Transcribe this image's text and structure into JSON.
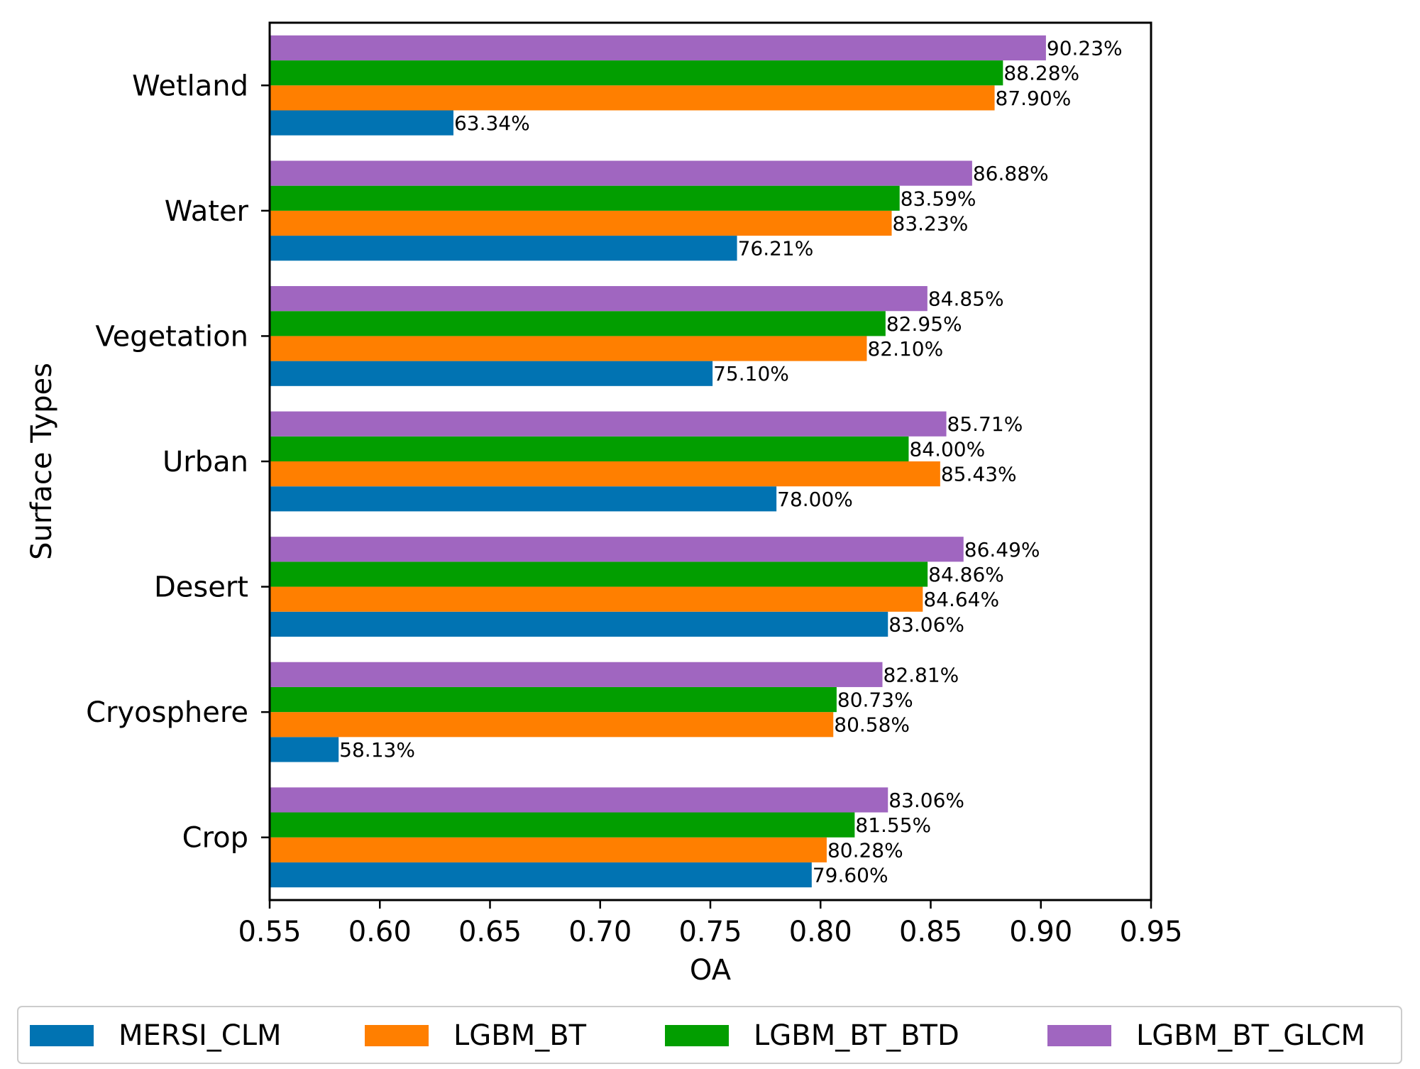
{
  "chart_data": {
    "type": "bar",
    "orientation": "horizontal",
    "title": "",
    "xlabel": "OA",
    "ylabel": "Surface Types",
    "xlim": [
      0.55,
      0.95
    ],
    "xticks": [
      "0.55",
      "0.60",
      "0.65",
      "0.70",
      "0.75",
      "0.80",
      "0.85",
      "0.90",
      "0.95"
    ],
    "categories": [
      "Crop",
      "Cryosphere",
      "Desert",
      "Urban",
      "Vegetation",
      "Water",
      "Wetland"
    ],
    "series": [
      {
        "name": "MERSI_CLM",
        "color": "#0173b2",
        "values": [
          0.796,
          0.5813,
          0.8306,
          0.78,
          0.751,
          0.7621,
          0.6334
        ],
        "labels": [
          "79.60%",
          "58.13%",
          "83.06%",
          "78.00%",
          "75.10%",
          "76.21%",
          "63.34%"
        ]
      },
      {
        "name": "LGBM_BT",
        "color": "#ff7f00",
        "values": [
          0.8028,
          0.8058,
          0.8464,
          0.8543,
          0.821,
          0.8323,
          0.879
        ],
        "labels": [
          "80.28%",
          "80.58%",
          "84.64%",
          "85.43%",
          "82.10%",
          "83.23%",
          "87.90%"
        ]
      },
      {
        "name": "LGBM_BT_BTD",
        "color": "#029e00",
        "values": [
          0.8155,
          0.8073,
          0.8486,
          0.84,
          0.8295,
          0.8359,
          0.8828
        ],
        "labels": [
          "81.55%",
          "80.73%",
          "84.86%",
          "84.00%",
          "82.95%",
          "83.59%",
          "88.28%"
        ]
      },
      {
        "name": "LGBM_BT_GLCM",
        "color": "#a066c0",
        "values": [
          0.8306,
          0.8281,
          0.8649,
          0.8571,
          0.8485,
          0.8688,
          0.9023
        ],
        "labels": [
          "83.06%",
          "82.81%",
          "86.49%",
          "85.71%",
          "84.85%",
          "86.88%",
          "90.23%"
        ]
      }
    ],
    "legend": "bottom",
    "grid": false
  }
}
